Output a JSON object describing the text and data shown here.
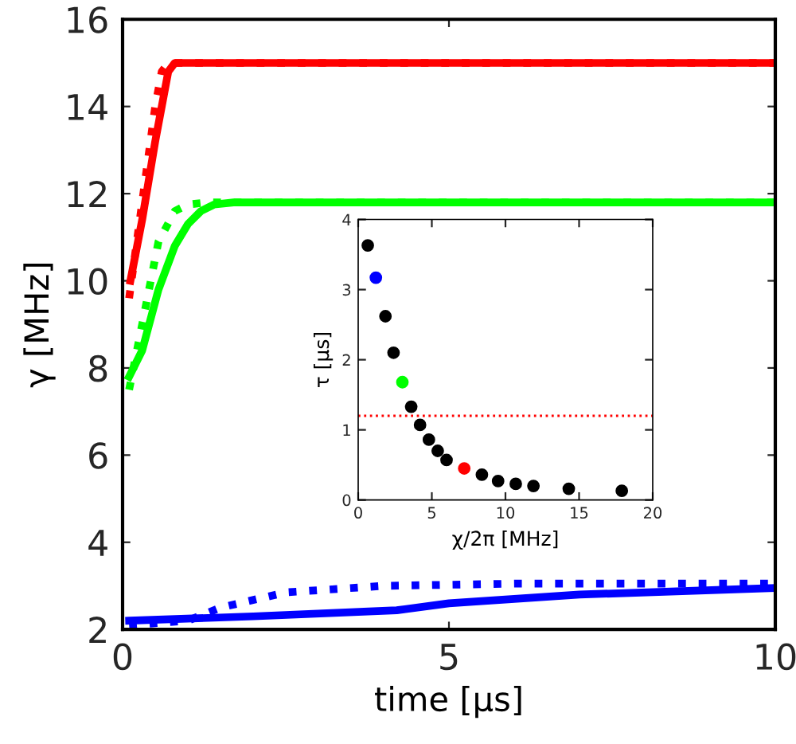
{
  "chart_data": [
    {
      "type": "line",
      "xlabel": "time [μs]",
      "ylabel": "γ [MHz]",
      "xlim": [
        0,
        10
      ],
      "ylim": [
        2,
        16
      ],
      "xticks": [
        0,
        5,
        10
      ],
      "yticks": [
        2,
        4,
        6,
        8,
        10,
        12,
        14,
        16
      ],
      "grid": false,
      "legend": false,
      "marker": "none",
      "series": [
        {
          "color": "#ff0000",
          "line_style": "solid",
          "x": [
            0.12,
            0.3,
            0.5,
            0.7,
            0.8,
            1.0,
            2,
            4,
            6,
            8,
            10
          ],
          "values": [
            10.0,
            11.4,
            13.2,
            14.8,
            15.0,
            15.0,
            15.0,
            15.0,
            15.0,
            15.0,
            15.0
          ]
        },
        {
          "color": "#ff0000",
          "line_style": "dotted",
          "x": [
            0.1,
            0.3,
            0.5,
            0.6,
            0.7,
            1.0,
            2,
            4,
            6,
            8,
            10
          ],
          "values": [
            9.6,
            11.8,
            14.0,
            14.8,
            15.0,
            15.0,
            15.0,
            15.0,
            15.0,
            15.0,
            15.0
          ]
        },
        {
          "color": "#00ff00",
          "line_style": "solid",
          "x": [
            0.1,
            0.3,
            0.55,
            0.8,
            1.0,
            1.2,
            1.4,
            1.7,
            2,
            4,
            6,
            8,
            10
          ],
          "values": [
            7.8,
            8.4,
            9.8,
            10.8,
            11.3,
            11.6,
            11.75,
            11.8,
            11.8,
            11.8,
            11.8,
            11.8,
            11.8
          ]
        },
        {
          "color": "#00ff00",
          "line_style": "dotted",
          "x": [
            0.1,
            0.3,
            0.55,
            0.8,
            1.0,
            1.3,
            2,
            4,
            6,
            8,
            10
          ],
          "values": [
            7.5,
            9.0,
            10.9,
            11.6,
            11.75,
            11.8,
            11.8,
            11.8,
            11.8,
            11.8,
            11.8
          ]
        },
        {
          "color": "#0000ff",
          "line_style": "solid",
          "x": [
            0.1,
            2,
            4.2,
            5,
            7,
            10
          ],
          "values": [
            2.2,
            2.3,
            2.44,
            2.6,
            2.8,
            2.95
          ]
        },
        {
          "color": "#0000ff",
          "line_style": "dotted",
          "x": [
            0.1,
            1,
            1.5,
            2.5,
            4,
            6,
            8,
            10
          ],
          "values": [
            2.1,
            2.2,
            2.5,
            2.85,
            3.0,
            3.05,
            3.05,
            3.05
          ]
        }
      ]
    },
    {
      "type": "scatter",
      "xlabel": "χ/2π [MHz]",
      "ylabel": "τ [μs]",
      "xlim": [
        0,
        20
      ],
      "ylim": [
        0,
        4
      ],
      "xticks": [
        0,
        5,
        10,
        15,
        20
      ],
      "yticks": [
        0,
        1,
        2,
        3,
        4
      ],
      "grid": false,
      "legend": false,
      "marker": "circle",
      "ref_lines": [
        {
          "axis": "y",
          "value": 1.2,
          "color": "#ff0000",
          "line_style": "dotted"
        }
      ],
      "series": [
        {
          "x": [
            0.65,
            1.2,
            1.85,
            2.4,
            3.0,
            3.6,
            4.2,
            4.8,
            5.4,
            6.0,
            7.2,
            8.4,
            9.5,
            10.7,
            11.9,
            14.3,
            17.9
          ],
          "values": [
            3.63,
            3.17,
            2.62,
            2.1,
            1.68,
            1.33,
            1.07,
            0.86,
            0.7,
            0.57,
            0.45,
            0.36,
            0.27,
            0.23,
            0.2,
            0.16,
            0.13
          ],
          "colors": [
            "#000000",
            "#0000ff",
            "#000000",
            "#000000",
            "#00ff00",
            "#000000",
            "#000000",
            "#000000",
            "#000000",
            "#000000",
            "#ff0000",
            "#000000",
            "#000000",
            "#000000",
            "#000000",
            "#000000",
            "#000000"
          ]
        }
      ]
    }
  ]
}
